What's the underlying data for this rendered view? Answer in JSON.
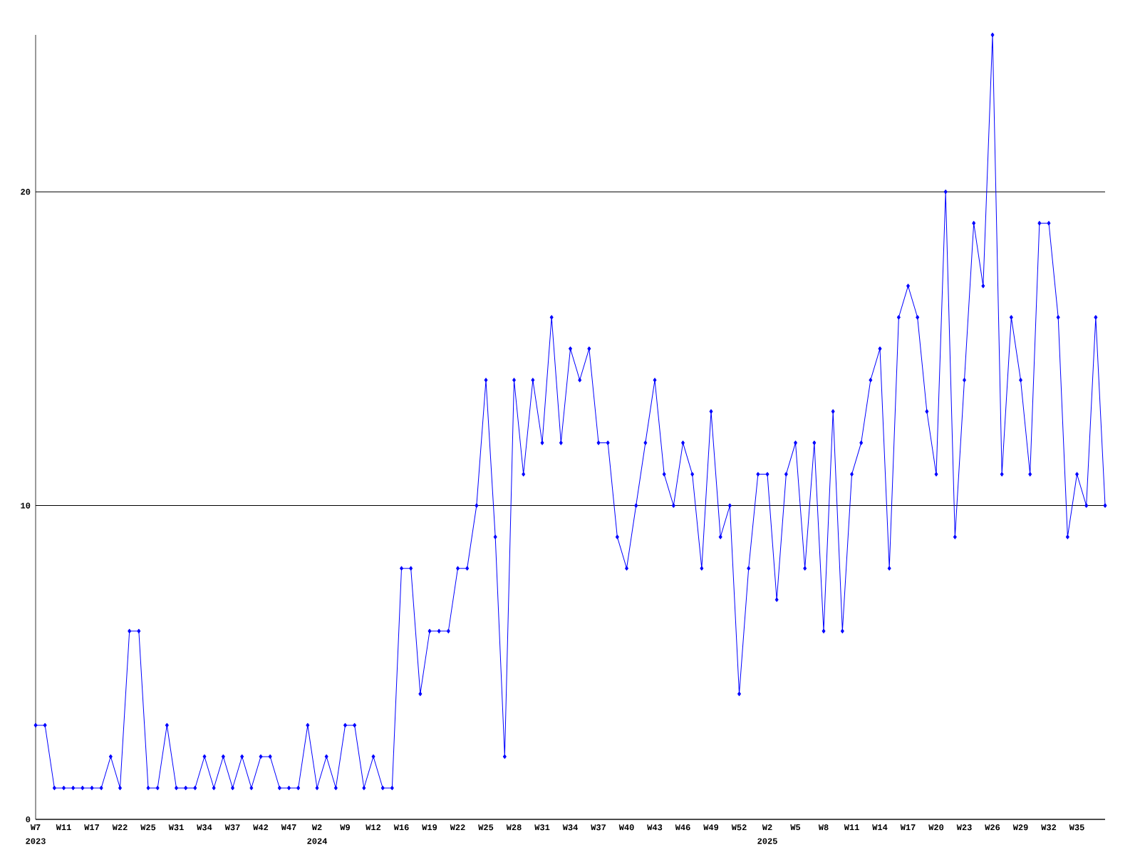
{
  "chart_data": {
    "type": "line",
    "categories": [
      "W7",
      null,
      null,
      "W11",
      null,
      null,
      "W17",
      null,
      null,
      "W22",
      null,
      null,
      "W25",
      null,
      null,
      "W31",
      null,
      null,
      "W34",
      null,
      null,
      "W37",
      null,
      null,
      "W42",
      null,
      null,
      "W47",
      null,
      null,
      "W2",
      null,
      null,
      "W9",
      null,
      null,
      "W12",
      null,
      null,
      "W16",
      null,
      null,
      "W19",
      null,
      null,
      "W22",
      null,
      null,
      "W25",
      null,
      null,
      "W28",
      null,
      null,
      "W31",
      null,
      null,
      "W34",
      null,
      null,
      "W37",
      null,
      null,
      "W40",
      null,
      null,
      "W43",
      null,
      null,
      "W46",
      null,
      null,
      "W49",
      null,
      null,
      "W52",
      null,
      null,
      "W2",
      null,
      null,
      "W5",
      null,
      null,
      "W8",
      null,
      null,
      "W11",
      null,
      null,
      "W14",
      null,
      null,
      "W17",
      null,
      null,
      "W20",
      null,
      null,
      "W23",
      null,
      null,
      "W26",
      null,
      null,
      "W29",
      null,
      null,
      "W32",
      null,
      null,
      "W35",
      null,
      null,
      null
    ],
    "series": [
      {
        "color": "#0000ff",
        "values": [
          3,
          3,
          1,
          1,
          1,
          1,
          1,
          1,
          2,
          1,
          6,
          6,
          1,
          1,
          3,
          1,
          1,
          1,
          2,
          1,
          2,
          1,
          2,
          1,
          2,
          2,
          1,
          1,
          1,
          3,
          1,
          2,
          1,
          3,
          3,
          1,
          2,
          1,
          1,
          8,
          8,
          4,
          6,
          6,
          6,
          8,
          8,
          10,
          14,
          9,
          2,
          14,
          11,
          14,
          12,
          16,
          12,
          15,
          14,
          15,
          12,
          12,
          9,
          8,
          10,
          12,
          14,
          11,
          10,
          12,
          11,
          8,
          13,
          9,
          10,
          4,
          8,
          11,
          11,
          7,
          11,
          12,
          8,
          12,
          6,
          13,
          6,
          11,
          12,
          14,
          15,
          8,
          16,
          17,
          16,
          13,
          11,
          20,
          9,
          14,
          19,
          17,
          25,
          11,
          16,
          14,
          11,
          19,
          19,
          16,
          9,
          11,
          10,
          16,
          10
        ]
      }
    ],
    "ylim": [
      0,
      25
    ],
    "yticks": [
      0,
      10,
      20
    ],
    "grid": "y",
    "marker": "diamond",
    "line_style": "solid",
    "annotations": [
      "2023",
      "2024",
      "2025"
    ]
  }
}
